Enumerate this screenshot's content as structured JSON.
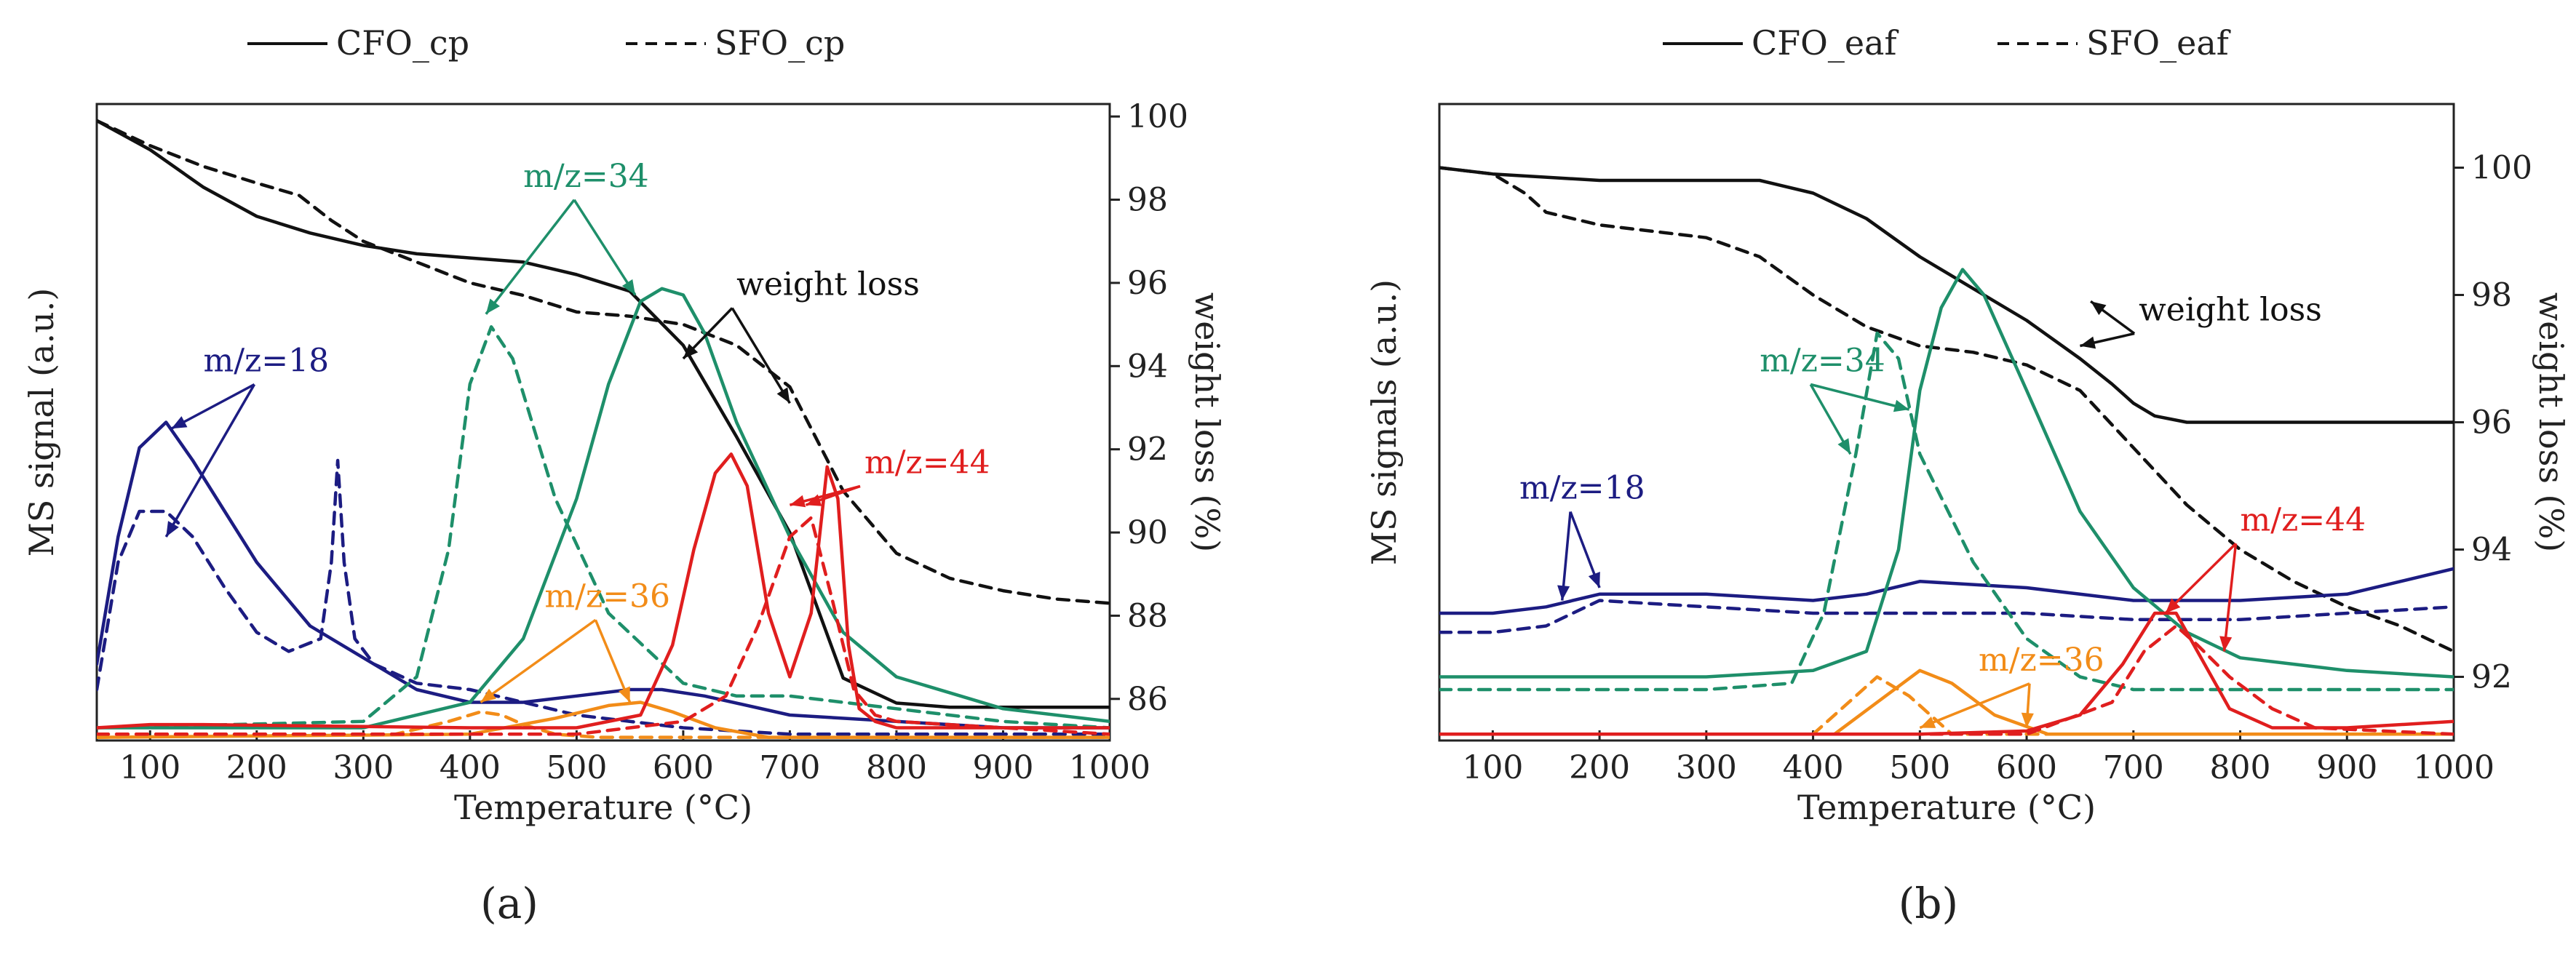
{
  "colors": {
    "axis": "#222222",
    "weight": "#111111",
    "m18": "#1c1c82",
    "m34": "#1e8f6a",
    "m36": "#f28c18",
    "m44": "#e01e1e"
  },
  "chart_data": [
    {
      "type": "line",
      "panel_label": "(a)",
      "xlabel": "Temperature (°C)",
      "ylabel_left": "MS signal (a.u.)",
      "ylabel_right": "weight loss (%)",
      "xlim": [
        50,
        1000
      ],
      "xticks": [
        100,
        200,
        300,
        400,
        500,
        600,
        700,
        800,
        900,
        1000
      ],
      "ylim_left": [
        0,
        100
      ],
      "ylim_right": [
        85,
        100.3
      ],
      "yticks_right": [
        86,
        88,
        90,
        92,
        94,
        96,
        98,
        100
      ],
      "legend": [
        {
          "label": "CFO_cp",
          "style": "solid"
        },
        {
          "label": "SFO_cp",
          "style": "dashed"
        }
      ],
      "annotations": [
        {
          "text": "m/z=18",
          "color": "m18",
          "x": 150,
          "y": 58,
          "targets": [
            [
              120,
              49
            ],
            [
              115,
              32
            ]
          ]
        },
        {
          "text": "m/z=34",
          "color": "m34",
          "x": 450,
          "y": 87,
          "targets": [
            [
              555,
              70
            ],
            [
              415,
              67
            ]
          ]
        },
        {
          "text": "weight loss",
          "color": "weight",
          "x": 650,
          "y": 70,
          "right": true,
          "targets": [
            [
              600,
              60
            ],
            [
              700,
              53
            ]
          ]
        },
        {
          "text": "m/z=44",
          "color": "m44",
          "x": 770,
          "y": 42,
          "right": true,
          "targets": [
            [
              700,
              37
            ],
            [
              715,
              37
            ]
          ]
        },
        {
          "text": "m/z=36",
          "color": "m36",
          "x": 470,
          "y": 21,
          "targets": [
            [
              410,
              6
            ],
            [
              550,
              6
            ]
          ]
        }
      ],
      "series": [
        {
          "name": "CFO_cp weight loss",
          "axis": "right",
          "color": "weight",
          "style": "solid",
          "x": [
            50,
            100,
            150,
            200,
            250,
            300,
            350,
            400,
            450,
            500,
            550,
            600,
            650,
            700,
            750,
            800,
            850,
            900,
            950,
            1000
          ],
          "y": [
            99.9,
            99.2,
            98.3,
            97.6,
            97.2,
            96.9,
            96.7,
            96.6,
            96.5,
            96.2,
            95.8,
            94.5,
            92.3,
            90.0,
            86.5,
            85.9,
            85.8,
            85.8,
            85.8,
            85.8
          ]
        },
        {
          "name": "SFO_cp weight loss",
          "axis": "right",
          "color": "weight",
          "style": "dashed",
          "x": [
            50,
            100,
            150,
            200,
            240,
            270,
            300,
            350,
            400,
            450,
            500,
            550,
            600,
            650,
            700,
            750,
            800,
            850,
            900,
            950,
            1000
          ],
          "y": [
            99.9,
            99.3,
            98.8,
            98.4,
            98.1,
            97.5,
            97.0,
            96.5,
            96.0,
            95.7,
            95.3,
            95.2,
            95.0,
            94.5,
            93.5,
            91.0,
            89.5,
            88.9,
            88.6,
            88.4,
            88.3
          ]
        },
        {
          "name": "CFO_cp m/z=18",
          "axis": "left",
          "color": "m18",
          "style": "solid",
          "x": [
            50,
            70,
            90,
            115,
            140,
            170,
            200,
            250,
            300,
            350,
            400,
            450,
            500,
            550,
            580,
            620,
            700,
            800,
            900,
            1000
          ],
          "y": [
            12,
            32,
            46,
            50,
            44,
            36,
            28,
            18,
            13,
            8,
            6,
            6,
            7,
            8,
            8,
            7,
            4,
            3,
            2,
            2
          ]
        },
        {
          "name": "SFO_cp m/z=18",
          "axis": "left",
          "color": "m18",
          "style": "dashed",
          "x": [
            50,
            70,
            90,
            115,
            140,
            170,
            200,
            230,
            260,
            270,
            276,
            282,
            292,
            310,
            350,
            400,
            450,
            500,
            600,
            700,
            800,
            1000
          ],
          "y": [
            8,
            28,
            36,
            36,
            32,
            24,
            17,
            14,
            16,
            28,
            44,
            28,
            16,
            12,
            9,
            8,
            6,
            4,
            2,
            1,
            1,
            1
          ]
        },
        {
          "name": "CFO_cp m/z=34",
          "axis": "left",
          "color": "m34",
          "style": "solid",
          "x": [
            50,
            300,
            400,
            450,
            500,
            530,
            560,
            580,
            600,
            620,
            650,
            700,
            750,
            800,
            900,
            1000
          ],
          "y": [
            2,
            2,
            6,
            16,
            38,
            56,
            69,
            71,
            70,
            64,
            50,
            32,
            17,
            10,
            5,
            3
          ]
        },
        {
          "name": "SFO_cp m/z=34",
          "axis": "left",
          "color": "m34",
          "style": "dashed",
          "x": [
            50,
            300,
            350,
            380,
            400,
            420,
            440,
            480,
            530,
            600,
            650,
            700,
            750,
            800,
            900,
            1000
          ],
          "y": [
            2,
            3,
            10,
            30,
            56,
            65,
            60,
            38,
            20,
            9,
            7,
            7,
            6,
            5,
            3,
            2
          ]
        },
        {
          "name": "CFO_cp m/z=36",
          "axis": "left",
          "color": "m36",
          "style": "solid",
          "x": [
            50,
            400,
            480,
            530,
            560,
            590,
            630,
            680,
            1000
          ],
          "y": [
            0.5,
            1,
            3.5,
            5.5,
            6,
            4.5,
            2,
            0.5,
            0.5
          ]
        },
        {
          "name": "SFO_cp m/z=36",
          "axis": "left",
          "color": "m36",
          "style": "dashed",
          "x": [
            50,
            330,
            380,
            410,
            430,
            450,
            480,
            520,
            1000
          ],
          "y": [
            0.5,
            1,
            3,
            4.5,
            4,
            2.5,
            1,
            0.5,
            0.5
          ]
        },
        {
          "name": "CFO_cp m/z=44",
          "axis": "left",
          "color": "m44",
          "style": "solid",
          "x": [
            50,
            100,
            150,
            400,
            500,
            560,
            590,
            610,
            630,
            645,
            660,
            680,
            700,
            720,
            735,
            745,
            755,
            765,
            780,
            800,
            900,
            1000
          ],
          "y": [
            2,
            2.5,
            2.5,
            2,
            2,
            4,
            15,
            30,
            42,
            45,
            40,
            20,
            10,
            20,
            43,
            38,
            15,
            5,
            3,
            2,
            2,
            2
          ]
        },
        {
          "name": "SFO_cp m/z=44",
          "axis": "left",
          "color": "m44",
          "style": "dashed",
          "x": [
            50,
            500,
            600,
            640,
            670,
            700,
            720,
            740,
            760,
            780,
            800,
            900,
            1000
          ],
          "y": [
            1,
            1,
            3,
            7,
            18,
            32,
            35,
            22,
            8,
            4,
            3,
            2,
            1
          ]
        }
      ]
    },
    {
      "type": "line",
      "panel_label": "(b)",
      "xlabel": "Temperature (°C)",
      "ylabel_left": "MS signals (a.u.)",
      "ylabel_right": "weight loss (%)",
      "xlim": [
        50,
        1000
      ],
      "xticks": [
        100,
        200,
        300,
        400,
        500,
        600,
        700,
        800,
        900,
        1000
      ],
      "ylim_left": [
        0,
        100
      ],
      "ylim_right": [
        91.0,
        101.0
      ],
      "yticks_right": [
        92,
        94,
        96,
        98,
        100
      ],
      "legend": [
        {
          "label": "CFO_eaf",
          "style": "solid"
        },
        {
          "label": "SFO_eaf",
          "style": "dashed"
        }
      ],
      "annotations": [
        {
          "text": "weight loss",
          "color": "weight",
          "x": 705,
          "y": 66,
          "right": true,
          "targets": [
            [
              660,
              69
            ],
            [
              650,
              62
            ]
          ]
        },
        {
          "text": "m/z=34",
          "color": "m34",
          "x": 350,
          "y": 58,
          "targets": [
            [
              490,
              52
            ],
            [
              435,
              45
            ]
          ]
        },
        {
          "text": "m/z=18",
          "color": "m18",
          "x": 125,
          "y": 38,
          "targets": [
            [
              165,
              22
            ],
            [
              200,
              24
            ]
          ]
        },
        {
          "text": "m/z=44",
          "color": "m44",
          "x": 800,
          "y": 33,
          "right": true,
          "targets": [
            [
              730,
              20
            ],
            [
              785,
              14
            ]
          ]
        },
        {
          "text": "m/z=36",
          "color": "m36",
          "x": 555,
          "y": 11,
          "targets": [
            [
              500,
              2
            ],
            [
              600,
              2
            ]
          ]
        }
      ],
      "series": [
        {
          "name": "CFO_eaf weight loss",
          "axis": "right",
          "color": "weight",
          "style": "solid",
          "x": [
            50,
            100,
            200,
            300,
            350,
            400,
            450,
            500,
            550,
            600,
            650,
            680,
            700,
            720,
            750,
            800,
            900,
            1000
          ],
          "y": [
            100.0,
            99.9,
            99.8,
            99.8,
            99.8,
            99.6,
            99.2,
            98.6,
            98.1,
            97.6,
            97.0,
            96.6,
            96.3,
            96.1,
            96.0,
            96.0,
            96.0,
            96.0
          ]
        },
        {
          "name": "SFO_eaf weight loss",
          "axis": "right",
          "color": "weight",
          "style": "dashed",
          "x": [
            50,
            100,
            130,
            150,
            200,
            250,
            300,
            350,
            400,
            450,
            500,
            550,
            600,
            650,
            700,
            750,
            800,
            850,
            900,
            950,
            1000
          ],
          "y": [
            100.0,
            99.9,
            99.6,
            99.3,
            99.1,
            99.0,
            98.9,
            98.6,
            98.0,
            97.5,
            97.2,
            97.1,
            96.9,
            96.5,
            95.6,
            94.7,
            94.0,
            93.5,
            93.1,
            92.8,
            92.4
          ]
        },
        {
          "name": "CFO_eaf m/z=18",
          "axis": "left",
          "color": "m18",
          "style": "solid",
          "x": [
            50,
            100,
            150,
            200,
            300,
            400,
            450,
            500,
            600,
            700,
            800,
            900,
            1000
          ],
          "y": [
            20,
            20,
            21,
            23,
            23,
            22,
            23,
            25,
            24,
            22,
            22,
            23,
            27
          ]
        },
        {
          "name": "SFO_eaf m/z=18",
          "axis": "left",
          "color": "m18",
          "style": "dashed",
          "x": [
            50,
            100,
            150,
            200,
            300,
            400,
            500,
            600,
            700,
            800,
            900,
            1000
          ],
          "y": [
            17,
            17,
            18,
            22,
            21,
            20,
            20,
            20,
            19,
            19,
            20,
            21
          ]
        },
        {
          "name": "CFO_eaf m/z=34",
          "axis": "left",
          "color": "m34",
          "style": "solid",
          "x": [
            50,
            300,
            400,
            450,
            480,
            500,
            520,
            540,
            560,
            600,
            650,
            700,
            750,
            800,
            900,
            1000
          ],
          "y": [
            10,
            10,
            11,
            14,
            30,
            55,
            68,
            74,
            70,
            55,
            36,
            24,
            17,
            13,
            11,
            10
          ]
        },
        {
          "name": "SFO_eaf m/z=34",
          "axis": "left",
          "color": "m34",
          "style": "dashed",
          "x": [
            50,
            300,
            380,
            410,
            440,
            460,
            480,
            500,
            550,
            600,
            650,
            700,
            800,
            900,
            1000
          ],
          "y": [
            8,
            8,
            9,
            20,
            45,
            64,
            60,
            45,
            28,
            16,
            10,
            8,
            8,
            8,
            8
          ]
        },
        {
          "name": "CFO_eaf m/z=36",
          "axis": "left",
          "color": "m36",
          "style": "solid",
          "x": [
            50,
            420,
            460,
            500,
            530,
            570,
            620,
            1000
          ],
          "y": [
            1,
            1,
            6,
            11,
            9,
            4,
            1,
            1
          ]
        },
        {
          "name": "SFO_eaf m/z=36",
          "axis": "left",
          "color": "m36",
          "style": "dashed",
          "x": [
            50,
            400,
            440,
            460,
            490,
            530,
            1000
          ],
          "y": [
            1,
            1,
            7,
            10,
            7,
            1,
            1
          ]
        },
        {
          "name": "CFO_eaf m/z=44",
          "axis": "left",
          "color": "m44",
          "style": "solid",
          "x": [
            50,
            500,
            600,
            650,
            690,
            720,
            740,
            760,
            790,
            830,
            900,
            1000
          ],
          "y": [
            1,
            1,
            1.5,
            4,
            12,
            20,
            20,
            14,
            5,
            2,
            2,
            3
          ]
        },
        {
          "name": "SFO_eaf m/z=44",
          "axis": "left",
          "color": "m44",
          "style": "dashed",
          "x": [
            50,
            500,
            600,
            680,
            710,
            740,
            760,
            790,
            830,
            870,
            1000
          ],
          "y": [
            1,
            1,
            1,
            6,
            14,
            18,
            15,
            10,
            5,
            2,
            1
          ]
        }
      ]
    }
  ]
}
